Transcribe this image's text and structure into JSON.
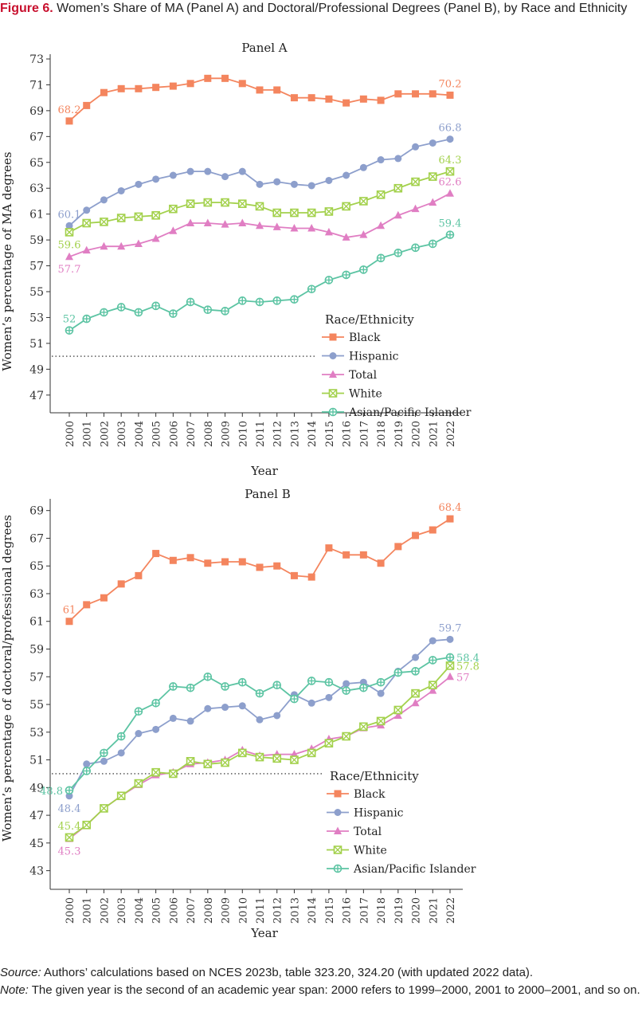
{
  "figure": {
    "label": "Figure 6.",
    "title": "Women’s Share of MA (Panel A) and Doctoral/Professional Degrees (Panel B), by Race and Ethnicity"
  },
  "footer": {
    "source_label": "Source:",
    "source_text": " Authors’ calculations based on NCES 2023b, table 323.20, 324.20 (with updated 2022 data).",
    "note_label": "Note:",
    "note_text": " The given year is the second of an academic year span: 2000 refers to 1999–2000, 2001 to 2000–2001, and so on."
  },
  "colors": {
    "Black": "#f4855e",
    "Hispanic": "#8d9fcc",
    "Total": "#e07ec3",
    "White": "#a3d14c",
    "Asian/Pacific Islander": "#5cc4a3"
  },
  "chart_data": [
    {
      "type": "line",
      "title": "Panel A",
      "xlabel": "Year",
      "ylabel": "Women’s percentage of MA degrees",
      "ylim": [
        46,
        73
      ],
      "yticks": [
        47,
        49,
        51,
        53,
        55,
        57,
        59,
        61,
        63,
        65,
        67,
        69,
        71,
        73
      ],
      "x": [
        "2000",
        "2001",
        "2002",
        "2003",
        "2004",
        "2005",
        "2006",
        "2007",
        "2008",
        "2009",
        "2010",
        "2011",
        "2012",
        "2013",
        "2014",
        "2015",
        "2016",
        "2017",
        "2018",
        "2019",
        "2020",
        "2021",
        "2022"
      ],
      "reference_line": 50,
      "legend_title": "Race/Ethnicity",
      "legend_position": "lower-right",
      "series": [
        {
          "name": "Black",
          "marker": "square",
          "values": [
            68.2,
            69.4,
            70.4,
            70.7,
            70.7,
            70.8,
            70.9,
            71.1,
            71.5,
            71.5,
            71.1,
            70.6,
            70.6,
            70.0,
            70.0,
            69.9,
            69.6,
            69.9,
            69.8,
            70.3,
            70.3,
            70.3,
            70.2
          ],
          "labels": [
            {
              "index": 0,
              "text": "68.2",
              "pos": "above"
            },
            {
              "index": 22,
              "text": "70.2",
              "pos": "above"
            }
          ]
        },
        {
          "name": "Hispanic",
          "marker": "circle",
          "values": [
            60.1,
            61.3,
            62.1,
            62.8,
            63.3,
            63.7,
            64.0,
            64.3,
            64.3,
            63.9,
            64.3,
            63.3,
            63.5,
            63.3,
            63.2,
            63.6,
            64.0,
            64.6,
            65.2,
            65.3,
            66.2,
            66.5,
            66.8
          ],
          "labels": [
            {
              "index": 0,
              "text": "60.1",
              "pos": "above"
            },
            {
              "index": 22,
              "text": "66.8",
              "pos": "above"
            }
          ]
        },
        {
          "name": "Total",
          "marker": "triangle",
          "values": [
            57.7,
            58.2,
            58.5,
            58.5,
            58.7,
            59.1,
            59.7,
            60.3,
            60.3,
            60.2,
            60.3,
            60.1,
            60.0,
            59.9,
            59.9,
            59.6,
            59.2,
            59.4,
            60.1,
            60.9,
            61.4,
            61.9,
            62.6
          ],
          "labels": [
            {
              "index": 0,
              "text": "57.7",
              "pos": "below"
            },
            {
              "index": 22,
              "text": "62.6",
              "pos": "above"
            }
          ]
        },
        {
          "name": "White",
          "marker": "xsquare",
          "values": [
            59.6,
            60.3,
            60.4,
            60.7,
            60.8,
            60.9,
            61.4,
            61.8,
            61.9,
            61.9,
            61.8,
            61.6,
            61.1,
            61.1,
            61.1,
            61.2,
            61.6,
            62.0,
            62.5,
            63.0,
            63.5,
            63.9,
            64.3
          ],
          "labels": [
            {
              "index": 0,
              "text": "59.6",
              "pos": "below"
            },
            {
              "index": 22,
              "text": "64.3",
              "pos": "above"
            }
          ]
        },
        {
          "name": "Asian/Pacific Islander",
          "marker": "pluscircle",
          "values": [
            52.0,
            52.9,
            53.4,
            53.8,
            53.4,
            53.9,
            53.3,
            54.2,
            53.6,
            53.5,
            54.3,
            54.2,
            54.3,
            54.4,
            55.2,
            55.9,
            56.3,
            56.7,
            57.6,
            58.0,
            58.4,
            58.7,
            59.4
          ],
          "labels": [
            {
              "index": 0,
              "text": "52",
              "pos": "above"
            },
            {
              "index": 22,
              "text": "59.4",
              "pos": "above"
            }
          ]
        }
      ]
    },
    {
      "type": "line",
      "title": "Panel B",
      "xlabel": "Year",
      "ylabel": "Women’s percentage of doctoral/professional degrees",
      "ylim": [
        42,
        69.5
      ],
      "yticks": [
        43,
        45,
        47,
        49,
        51,
        53,
        55,
        57,
        59,
        61,
        63,
        65,
        67,
        69
      ],
      "x": [
        "2000",
        "2001",
        "2002",
        "2003",
        "2004",
        "2005",
        "2006",
        "2007",
        "2008",
        "2009",
        "2010",
        "2011",
        "2012",
        "2013",
        "2014",
        "2015",
        "2016",
        "2017",
        "2018",
        "2019",
        "2020",
        "2021",
        "2022"
      ],
      "reference_line": 50,
      "legend_title": "Race/Ethnicity",
      "legend_position": "lower-right",
      "series": [
        {
          "name": "Black",
          "marker": "square",
          "values": [
            61.0,
            62.2,
            62.7,
            63.7,
            64.3,
            65.9,
            65.4,
            65.6,
            65.2,
            65.3,
            65.3,
            64.9,
            65.0,
            64.3,
            64.2,
            66.3,
            65.8,
            65.8,
            65.2,
            66.4,
            67.2,
            67.6,
            68.4
          ],
          "labels": [
            {
              "index": 0,
              "text": "61",
              "pos": "above"
            },
            {
              "index": 22,
              "text": "68.4",
              "pos": "above"
            }
          ]
        },
        {
          "name": "Hispanic",
          "marker": "circle",
          "values": [
            48.4,
            50.7,
            50.9,
            51.5,
            52.9,
            53.2,
            54.0,
            53.8,
            54.7,
            54.8,
            54.9,
            53.9,
            54.2,
            55.7,
            55.1,
            55.5,
            56.5,
            56.6,
            55.8,
            57.4,
            58.4,
            59.6,
            59.7
          ],
          "labels": [
            {
              "index": 0,
              "text": "48.4",
              "pos": "below"
            },
            {
              "index": 22,
              "text": "59.7",
              "pos": "above"
            }
          ]
        },
        {
          "name": "Total",
          "marker": "triangle",
          "values": [
            45.3,
            46.3,
            47.5,
            48.4,
            49.2,
            49.9,
            50.1,
            50.7,
            50.8,
            51.0,
            51.7,
            51.3,
            51.4,
            51.4,
            51.8,
            52.5,
            52.7,
            53.3,
            53.5,
            54.2,
            55.1,
            56.0,
            57.0
          ],
          "labels": [
            {
              "index": 0,
              "text": "45.3",
              "pos": "below"
            },
            {
              "index": 22,
              "text": "57",
              "pos": "right"
            }
          ]
        },
        {
          "name": "White",
          "marker": "xsquare",
          "values": [
            45.4,
            46.3,
            47.5,
            48.4,
            49.3,
            50.1,
            50.0,
            50.9,
            50.7,
            50.8,
            51.5,
            51.2,
            51.1,
            51.0,
            51.5,
            52.2,
            52.7,
            53.4,
            53.8,
            54.6,
            55.8,
            56.4,
            57.8
          ],
          "labels": [
            {
              "index": 0,
              "text": "45.4",
              "pos": "above"
            },
            {
              "index": 22,
              "text": "57.8",
              "pos": "right"
            }
          ]
        },
        {
          "name": "Asian/Pacific Islander",
          "marker": "pluscircle",
          "values": [
            48.8,
            50.2,
            51.5,
            52.7,
            54.5,
            55.1,
            56.3,
            56.2,
            57.0,
            56.3,
            56.6,
            55.8,
            56.4,
            55.4,
            56.7,
            56.6,
            56.0,
            56.2,
            56.6,
            57.3,
            57.4,
            58.2,
            58.4
          ],
          "labels": [
            {
              "index": 0,
              "text": "48.8",
              "pos": "left"
            },
            {
              "index": 22,
              "text": "58.4",
              "pos": "right"
            }
          ]
        }
      ]
    }
  ]
}
